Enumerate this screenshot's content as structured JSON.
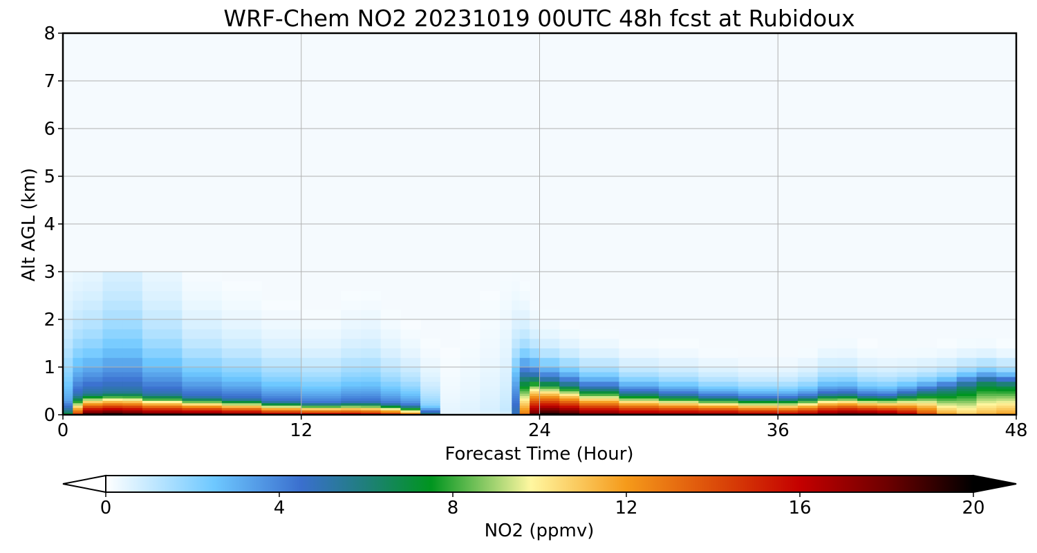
{
  "chart_data": {
    "type": "heatmap",
    "title": "WRF-Chem NO2  20231019 00UTC 48h fcst at Rubidoux",
    "xlabel": "Forecast Time (Hour)",
    "ylabel": "Alt AGL (km)",
    "xlim": [
      0,
      48
    ],
    "ylim": [
      0,
      8
    ],
    "x_ticks": [
      0,
      12,
      24,
      36,
      48
    ],
    "y_ticks": [
      0,
      1,
      2,
      3,
      4,
      5,
      6,
      7,
      8
    ],
    "grid": true,
    "colorbar": {
      "label": "NO2  (ppmv)",
      "range": [
        0,
        20
      ],
      "ticks": [
        0,
        4,
        8,
        12,
        16,
        20
      ],
      "extend": "both",
      "colormap_stops": [
        {
          "v": 0,
          "c": "#ffffff"
        },
        {
          "v": 2.5,
          "c": "#6ec8ff"
        },
        {
          "v": 4.5,
          "c": "#3a6fce"
        },
        {
          "v": 6,
          "c": "#1f7f7a"
        },
        {
          "v": 7.5,
          "c": "#00951f"
        },
        {
          "v": 9.8,
          "c": "#fff7a0"
        },
        {
          "v": 12,
          "c": "#f59a1a"
        },
        {
          "v": 14.5,
          "c": "#d63a06"
        },
        {
          "v": 16,
          "c": "#c40000"
        },
        {
          "v": 18,
          "c": "#6e0000"
        },
        {
          "v": 20,
          "c": "#000000"
        }
      ]
    },
    "times": [
      0,
      0.5,
      1,
      2,
      3,
      4,
      6,
      8,
      10,
      12,
      14,
      15,
      16,
      17,
      18,
      19,
      20,
      21,
      22,
      22.6,
      23,
      23.5,
      24,
      25,
      26,
      28,
      30,
      32,
      34,
      36,
      37,
      38,
      39,
      40,
      41,
      42,
      43,
      44,
      45,
      46,
      47,
      48
    ],
    "altitudes": [
      0,
      0.05,
      0.1,
      0.15,
      0.2,
      0.25,
      0.3,
      0.35,
      0.4,
      0.45,
      0.5,
      0.55,
      0.6,
      0.7,
      0.8,
      0.9,
      1.0,
      1.2,
      1.4,
      1.6,
      1.8,
      2.0,
      2.2,
      2.4,
      2.6,
      2.8,
      3.0
    ],
    "profile_params": {
      "note": "NO2 (ppmv) at each forecast time approximated as a vertical profile: surface value s, boundary-layer value m held to height h, then decaying with scale d",
      "s": [
        4,
        11,
        19,
        20,
        20,
        19,
        19,
        19,
        18,
        17,
        17,
        17,
        16,
        15,
        12,
        0.5,
        0.3,
        0.3,
        0.3,
        0.4,
        9,
        17,
        20,
        20,
        19,
        18,
        18,
        18,
        18,
        17,
        17,
        18,
        19,
        19,
        19,
        18,
        16,
        13,
        11,
        11,
        12,
        12
      ],
      "m": [
        2,
        5,
        5.5,
        5.5,
        5.5,
        5.5,
        5,
        5,
        5,
        4.5,
        4.5,
        5,
        4.5,
        4.5,
        4,
        0.4,
        0.5,
        0.6,
        0.8,
        1.2,
        4.5,
        6,
        6.5,
        6.5,
        6,
        5.5,
        5.5,
        5.5,
        5,
        5,
        5,
        5,
        5.5,
        5.5,
        5,
        5,
        5,
        5,
        5.5,
        6,
        6.5,
        6
      ],
      "h": [
        0.1,
        0.3,
        0.42,
        0.45,
        0.47,
        0.45,
        0.38,
        0.35,
        0.3,
        0.25,
        0.25,
        0.27,
        0.25,
        0.22,
        0.18,
        0.1,
        0.1,
        0.1,
        0.1,
        0.1,
        0.9,
        0.8,
        0.7,
        0.62,
        0.58,
        0.48,
        0.42,
        0.38,
        0.35,
        0.33,
        0.35,
        0.4,
        0.45,
        0.4,
        0.38,
        0.4,
        0.5,
        0.55,
        0.6,
        0.68,
        0.72,
        0.62
      ],
      "d": [
        1.2,
        1.1,
        0.9,
        1.1,
        1.3,
        1.1,
        0.8,
        0.7,
        0.6,
        0.55,
        0.55,
        0.7,
        0.6,
        0.5,
        0.45,
        0.7,
        1.1,
        1.3,
        1.5,
        1.6,
        0.6,
        0.45,
        0.4,
        0.35,
        0.35,
        0.3,
        0.3,
        0.28,
        0.25,
        0.25,
        0.25,
        0.3,
        0.35,
        0.3,
        0.28,
        0.28,
        0.25,
        0.25,
        0.25,
        0.25,
        0.22,
        0.2
      ]
    }
  }
}
